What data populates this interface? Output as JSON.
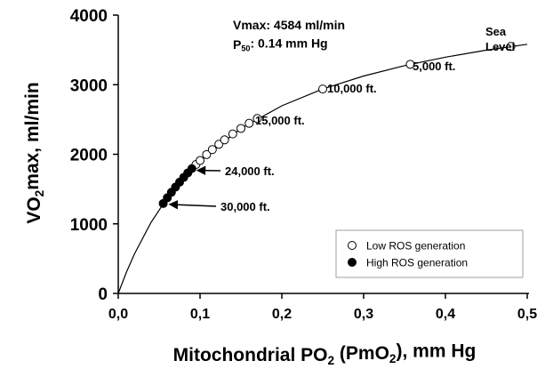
{
  "chart_data": {
    "type": "scatter",
    "ylabel": [
      "VO",
      "2",
      "max, ml/min"
    ],
    "xlabel": [
      "Mitochondrial PO",
      "2",
      " (PmO",
      "2",
      "), mm Hg"
    ],
    "xlim": [
      0,
      0.5
    ],
    "ylim": [
      0,
      4000
    ],
    "xticks": [
      {
        "value": 0,
        "label": "0,0"
      },
      {
        "value": 0.1,
        "label": "0,1"
      },
      {
        "value": 0.2,
        "label": "0,2"
      },
      {
        "value": 0.3,
        "label": "0,3"
      },
      {
        "value": 0.4,
        "label": "0,4"
      },
      {
        "value": 0.5,
        "label": "0,5"
      }
    ],
    "yticks": [
      0,
      1000,
      2000,
      3000,
      4000
    ],
    "vmax_label": "Vmax: 4584 ml/min",
    "p50_label": [
      "P",
      "50",
      ": 0.14 mm Hg"
    ],
    "point_labels": [
      "Sea",
      "Level",
      "5,000 ft.",
      "10,000 ft.",
      "15,000 ft.",
      "24,000 ft.",
      "30,000 ft."
    ],
    "curve": {
      "color": "#000000",
      "x": [
        0,
        0.01,
        0.02,
        0.04,
        0.06,
        0.08,
        0.1,
        0.15,
        0.2,
        0.25,
        0.3,
        0.35,
        0.4,
        0.45,
        0.5
      ],
      "values": [
        0,
        306,
        573,
        1019,
        1375,
        1667,
        1910,
        2371,
        2696,
        2938,
        3125,
        3274,
        3396,
        3496,
        3581
      ]
    },
    "series": [
      {
        "name": "Low ROS generation",
        "color": "#ffffff",
        "x": [
          0.095,
          0.1,
          0.108,
          0.115,
          0.123,
          0.13,
          0.14,
          0.15,
          0.16,
          0.17,
          0.25,
          0.357,
          0.48
        ],
        "values": [
          1853,
          1910,
          1996,
          2067,
          2144,
          2207,
          2292,
          2371,
          2445,
          2514,
          2938,
          3293,
          3549
        ]
      },
      {
        "name": "High ROS generation",
        "color": "#000000",
        "x": [
          0.055,
          0.06,
          0.065,
          0.07,
          0.075,
          0.08,
          0.085,
          0.09
        ],
        "values": [
          1293,
          1375,
          1453,
          1528,
          1599,
          1667,
          1732,
          1794
        ]
      }
    ],
    "legend": "lower right"
  }
}
